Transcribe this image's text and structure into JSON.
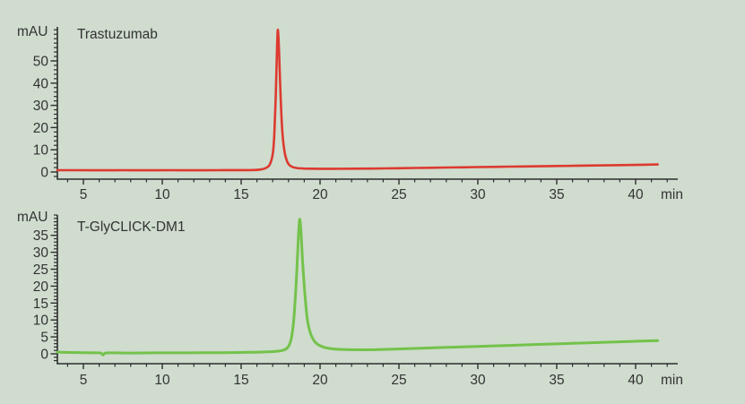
{
  "figure": {
    "background_color": "#cfdcce",
    "axis_color": "#2d2d2d",
    "text_color": "#333333"
  },
  "chart_data": [
    {
      "type": "line",
      "title": "Trastuzumab",
      "ylabel": "mAU",
      "xlabel": "min",
      "color": "#dd3a2f",
      "xlim": [
        3.35,
        42.7
      ],
      "ylim": [
        -3,
        65
      ],
      "x_ticks_major": [
        5,
        10,
        15,
        20,
        25,
        30,
        35,
        40
      ],
      "x_minor_step": 1,
      "y_ticks_major": [
        0,
        10,
        20,
        30,
        40,
        50
      ],
      "y_minor_step": 2,
      "grid": false,
      "legend": "none",
      "peak": {
        "retention_min": 17.3,
        "apex_mau": 64
      },
      "trace": [
        [
          3.35,
          0.8
        ],
        [
          4.5,
          0.8
        ],
        [
          6,
          0.75
        ],
        [
          7.5,
          0.8
        ],
        [
          9,
          0.75
        ],
        [
          10.5,
          0.8
        ],
        [
          12,
          0.78
        ],
        [
          13.5,
          0.8
        ],
        [
          15,
          0.85
        ],
        [
          15.8,
          0.9
        ],
        [
          16.2,
          1.1
        ],
        [
          16.5,
          1.6
        ],
        [
          16.8,
          3.2
        ],
        [
          17.0,
          8
        ],
        [
          17.1,
          17
        ],
        [
          17.2,
          36
        ],
        [
          17.28,
          57
        ],
        [
          17.33,
          64
        ],
        [
          17.4,
          55
        ],
        [
          17.5,
          34
        ],
        [
          17.6,
          19
        ],
        [
          17.72,
          10.5
        ],
        [
          17.85,
          6
        ],
        [
          18.0,
          3.6
        ],
        [
          18.2,
          2.4
        ],
        [
          18.5,
          1.8
        ],
        [
          19,
          1.55
        ],
        [
          20,
          1.45
        ],
        [
          21,
          1.45
        ],
        [
          22,
          1.5
        ],
        [
          24,
          1.6
        ],
        [
          26,
          1.8
        ],
        [
          28,
          2.0
        ],
        [
          30,
          2.2
        ],
        [
          32,
          2.4
        ],
        [
          34,
          2.6
        ],
        [
          36,
          2.8
        ],
        [
          38,
          3.0
        ],
        [
          40,
          3.2
        ],
        [
          41.4,
          3.4
        ]
      ]
    },
    {
      "type": "line",
      "title": "T-GlyCLICK-DM1",
      "ylabel": "mAU",
      "xlabel": "min",
      "color": "#74c24b",
      "xlim": [
        3.35,
        42.7
      ],
      "ylim": [
        -2,
        41
      ],
      "x_ticks_major": [
        5,
        10,
        15,
        20,
        25,
        30,
        35,
        40
      ],
      "x_minor_step": 1,
      "y_ticks_major": [
        0,
        5,
        10,
        15,
        20,
        25,
        30,
        35
      ],
      "y_minor_step": 1,
      "grid": false,
      "legend": "none",
      "peak": {
        "retention_min": 18.7,
        "apex_mau": 39.5
      },
      "trace": [
        [
          3.35,
          0.5
        ],
        [
          4.2,
          0.4
        ],
        [
          5,
          0.35
        ],
        [
          5.8,
          0.3
        ],
        [
          6.1,
          0.25
        ],
        [
          6.25,
          -0.35
        ],
        [
          6.4,
          0.25
        ],
        [
          7,
          0.3
        ],
        [
          8,
          0.25
        ],
        [
          9.5,
          0.3
        ],
        [
          11,
          0.28
        ],
        [
          12.5,
          0.32
        ],
        [
          14,
          0.35
        ],
        [
          15.5,
          0.45
        ],
        [
          16.5,
          0.55
        ],
        [
          17.2,
          0.75
        ],
        [
          17.7,
          1.1
        ],
        [
          18.0,
          2.2
        ],
        [
          18.2,
          5
        ],
        [
          18.35,
          11
        ],
        [
          18.5,
          22
        ],
        [
          18.6,
          32
        ],
        [
          18.7,
          39.5
        ],
        [
          18.78,
          37
        ],
        [
          18.9,
          27
        ],
        [
          19.05,
          17
        ],
        [
          19.2,
          10
        ],
        [
          19.4,
          6
        ],
        [
          19.7,
          3.4
        ],
        [
          20.1,
          2.2
        ],
        [
          20.6,
          1.6
        ],
        [
          21.3,
          1.3
        ],
        [
          22.5,
          1.2
        ],
        [
          24,
          1.3
        ],
        [
          26,
          1.6
        ],
        [
          28,
          1.9
        ],
        [
          30,
          2.2
        ],
        [
          32,
          2.5
        ],
        [
          34,
          2.8
        ],
        [
          36,
          3.1
        ],
        [
          38,
          3.4
        ],
        [
          40,
          3.7
        ],
        [
          41.4,
          3.9
        ]
      ]
    }
  ]
}
